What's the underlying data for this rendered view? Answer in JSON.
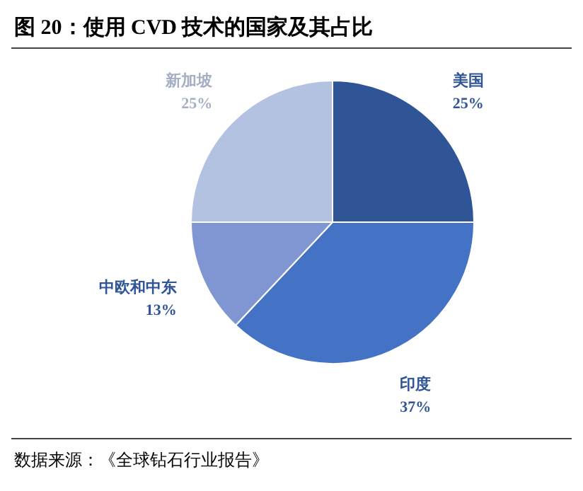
{
  "chart_data": {
    "type": "pie",
    "title": "图 20：使用 CVD 技术的国家及其占比",
    "categories": [
      "美国",
      "印度",
      "中欧和中东",
      "新加坡"
    ],
    "values": [
      25,
      37,
      13,
      25
    ],
    "value_labels": [
      "25%",
      "37%",
      "13%",
      "25%"
    ],
    "colors": [
      "#2f5597",
      "#4472c4",
      "#7f96d2",
      "#b4c2e2"
    ],
    "annotations": [
      "数据来源：《全球钻石行业报告》"
    ]
  }
}
